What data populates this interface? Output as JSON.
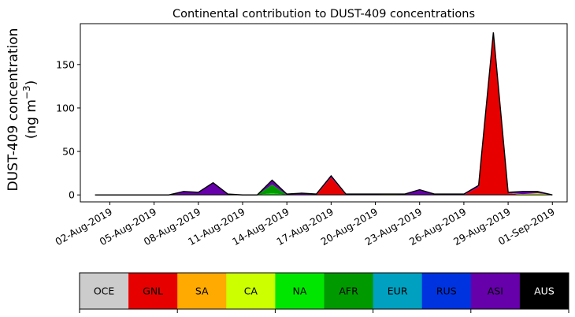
{
  "chart_data": {
    "type": "area",
    "title": "Continental contribution to DUST-409 concentrations",
    "ylabel_line1": "DUST-409 concentration",
    "ylabel_line2": "(ng m",
    "ylabel_sup": "−3",
    "ylabel_close": ")",
    "ylim": [
      -8,
      197
    ],
    "yticks": [
      0,
      50,
      100,
      150
    ],
    "xlim": [
      "2019-07-31",
      "2019-09-02"
    ],
    "xticks": [
      "02-Aug-2019",
      "05-Aug-2019",
      "08-Aug-2019",
      "11-Aug-2019",
      "14-Aug-2019",
      "17-Aug-2019",
      "20-Aug-2019",
      "23-Aug-2019",
      "26-Aug-2019",
      "29-Aug-2019",
      "01-Sep-2019"
    ],
    "x": [
      "2019-08-01",
      "2019-08-02",
      "2019-08-03",
      "2019-08-04",
      "2019-08-05",
      "2019-08-06",
      "2019-08-07",
      "2019-08-08",
      "2019-08-09",
      "2019-08-10",
      "2019-08-11",
      "2019-08-12",
      "2019-08-13",
      "2019-08-14",
      "2019-08-15",
      "2019-08-16",
      "2019-08-17",
      "2019-08-18",
      "2019-08-19",
      "2019-08-20",
      "2019-08-21",
      "2019-08-22",
      "2019-08-23",
      "2019-08-24",
      "2019-08-25",
      "2019-08-26",
      "2019-08-27",
      "2019-08-28",
      "2019-08-29",
      "2019-08-30",
      "2019-08-31",
      "2019-09-01"
    ],
    "categories": [
      "OCE",
      "GNL",
      "SA",
      "CA",
      "NA",
      "AFR",
      "EUR",
      "RUS",
      "ASI",
      "AUS"
    ],
    "colors": [
      "#cccccc",
      "#e60000",
      "#ffaa00",
      "#ccff00",
      "#00e600",
      "#009900",
      "#00a0c0",
      "#0033e0",
      "#6600aa",
      "#000000"
    ],
    "series": [
      {
        "name": "OCE",
        "values": [
          0,
          0,
          0,
          0,
          0,
          0,
          0,
          0,
          0,
          0,
          0,
          0,
          0,
          0,
          0,
          0,
          0,
          0,
          0,
          0,
          0,
          0,
          0,
          0,
          0,
          0,
          0,
          0,
          0,
          0,
          0,
          0
        ]
      },
      {
        "name": "GNL",
        "values": [
          0,
          0,
          0,
          0,
          0,
          0,
          0,
          0,
          0,
          0,
          0,
          0,
          0,
          0,
          0,
          0,
          20,
          0,
          0,
          0,
          0,
          0,
          0,
          0,
          0,
          0,
          9,
          184,
          2,
          0,
          0,
          0
        ]
      },
      {
        "name": "SA",
        "values": [
          0,
          0,
          0,
          0,
          0,
          0,
          0,
          0,
          0,
          0,
          0,
          0,
          0,
          0,
          0,
          0,
          0,
          0,
          0,
          0,
          0,
          0,
          0,
          0,
          0,
          0,
          0,
          0,
          0,
          0,
          0,
          0
        ]
      },
      {
        "name": "CA",
        "values": [
          0,
          0,
          0,
          0,
          0,
          0,
          0,
          0,
          0,
          0,
          0,
          0,
          0,
          0,
          0,
          0,
          0,
          0,
          0,
          0,
          1,
          0,
          0,
          0,
          0,
          0,
          0,
          0,
          0,
          1,
          2,
          0
        ]
      },
      {
        "name": "NA",
        "values": [
          0,
          0,
          0,
          0,
          0,
          0,
          0,
          0,
          0,
          0,
          0,
          0,
          2,
          0,
          0,
          0,
          0,
          0,
          0,
          0,
          0,
          0,
          0,
          0,
          0,
          0,
          0,
          0,
          0,
          0,
          0,
          0
        ]
      },
      {
        "name": "AFR",
        "values": [
          0,
          0,
          0,
          0,
          0,
          0,
          0,
          0,
          0,
          0,
          0,
          0,
          10,
          0,
          0,
          0,
          0,
          0,
          0,
          0,
          0,
          0,
          0,
          0,
          0,
          0,
          0,
          0,
          0,
          0,
          0,
          0
        ]
      },
      {
        "name": "EUR",
        "values": [
          0,
          0,
          0,
          0,
          0,
          0,
          0,
          0,
          0,
          0,
          0,
          0,
          0,
          0,
          0,
          0,
          0,
          0,
          0,
          0,
          0,
          0,
          0,
          0,
          0,
          0,
          0,
          0,
          0,
          0,
          0,
          0
        ]
      },
      {
        "name": "RUS",
        "values": [
          0,
          0,
          0,
          0,
          0,
          0,
          0,
          0,
          0,
          0,
          0,
          0,
          0,
          0,
          0,
          0,
          0,
          0,
          0,
          0,
          0,
          0,
          0,
          0,
          0,
          0,
          0,
          0,
          0,
          0,
          0,
          0
        ]
      },
      {
        "name": "ASI",
        "values": [
          0,
          0,
          0,
          0,
          0,
          0,
          4,
          3,
          14,
          1,
          0,
          0,
          5,
          1,
          2,
          1,
          2,
          1,
          1,
          1,
          0,
          1,
          6,
          1,
          1,
          1,
          2,
          3,
          1,
          3,
          2,
          0
        ]
      },
      {
        "name": "AUS",
        "values": [
          0,
          0,
          0,
          0,
          0,
          0,
          0,
          0,
          0,
          0,
          0,
          0,
          0,
          0,
          0,
          0,
          0,
          0,
          0,
          0,
          0,
          0,
          0,
          0,
          0,
          0,
          0,
          0,
          0,
          0,
          0,
          0
        ]
      }
    ]
  }
}
